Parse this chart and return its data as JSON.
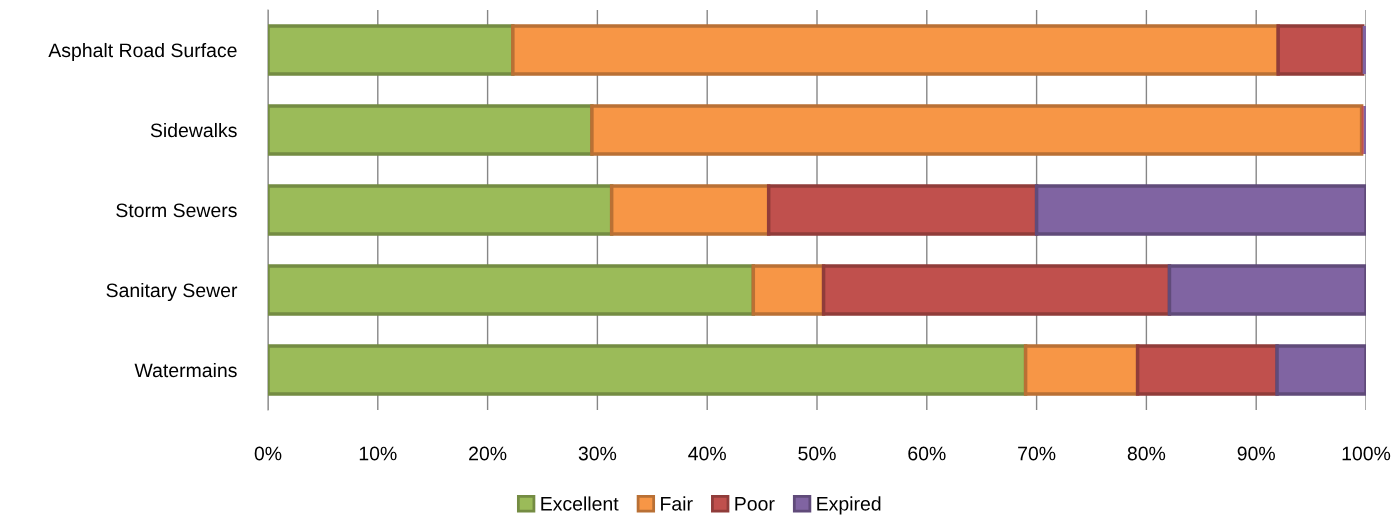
{
  "chart_data": {
    "type": "bar",
    "orientation": "horizontal",
    "stacked": true,
    "categories": [
      "Asphalt Road Surface",
      "Sidewalks",
      "Storm Sewers",
      "Sanitary Sewer",
      "Watermains"
    ],
    "series": [
      {
        "name": "Excellent",
        "color": "#9bbb59",
        "values": [
          22.3,
          29.5,
          31.3,
          44.2,
          69.0
        ]
      },
      {
        "name": "Fair",
        "color": "#f79646",
        "values": [
          69.7,
          70.1,
          14.3,
          6.4,
          10.2
        ]
      },
      {
        "name": "Poor",
        "color": "#c0504d",
        "values": [
          7.7,
          0.2,
          24.4,
          31.5,
          12.7
        ]
      },
      {
        "name": "Expired",
        "color": "#8064a2",
        "values": [
          0.3,
          0.2,
          30.0,
          17.9,
          8.1
        ]
      }
    ],
    "xlim": [
      0,
      100
    ],
    "xticks": [
      {
        "value": 0,
        "label": "0%"
      },
      {
        "value": 10,
        "label": "10%"
      },
      {
        "value": 20,
        "label": "20%"
      },
      {
        "value": 30,
        "label": "30%"
      },
      {
        "value": 40,
        "label": "40%"
      },
      {
        "value": 50,
        "label": "50%"
      },
      {
        "value": 60,
        "label": "60%"
      },
      {
        "value": 70,
        "label": "70%"
      },
      {
        "value": 80,
        "label": "80%"
      },
      {
        "value": 90,
        "label": "90%"
      },
      {
        "value": 100,
        "label": "100%"
      }
    ],
    "grid": "x",
    "legend": "bottom"
  }
}
